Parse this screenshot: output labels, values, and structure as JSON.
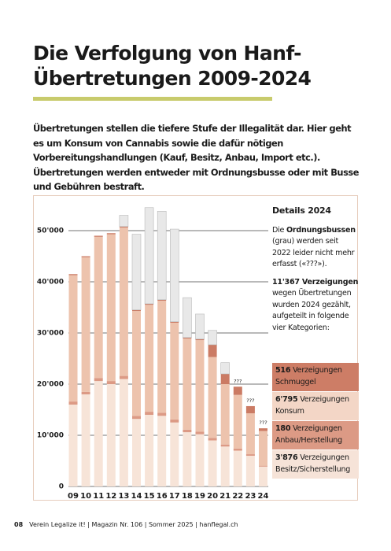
{
  "header": {
    "title_line1": "Die Verfolgung von Hanf-",
    "title_line2": "Übertretungen 2009-2024"
  },
  "intro": "Übertretungen stellen die tiefere Stufe der Illegalität dar. Hier geht es um Konsum von Cannabis sowie die dafür nötigen Vorbereitungshandlungen (Kauf, Besitz, Anbau, Import etc.). Übertretungen werden entweder mit Ordnungsbusse oder mit Busse und Gebühren bestraft.",
  "chart_data": {
    "type": "stacked_bar",
    "categories": [
      "09",
      "10",
      "11",
      "12",
      "13",
      "14",
      "15",
      "16",
      "17",
      "18",
      "19",
      "20",
      "21",
      "22",
      "23",
      "24"
    ],
    "ylim": [
      0,
      55000
    ],
    "yticks": [
      0,
      {
        "value": 10000,
        "label": "10'000"
      },
      {
        "value": 20000,
        "label": "20'000"
      },
      {
        "value": 30000,
        "label": "30'000"
      },
      {
        "value": 40000,
        "label": "40'000"
      },
      {
        "value": 50000,
        "label": "50'000"
      }
    ],
    "grid": true,
    "series": [
      {
        "name": "Verzeigungen Besitz/Sicherstellung",
        "color": "#f7e4d8",
        "values": [
          16000,
          18000,
          20600,
          20000,
          21000,
          13200,
          14000,
          13800,
          12500,
          10600,
          10200,
          9000,
          7800,
          7000,
          6000,
          3876
        ],
        "value_labels": [
          null,
          null,
          null,
          null,
          null,
          null,
          null,
          null,
          null,
          null,
          null,
          null,
          null,
          null,
          null,
          "3'876"
        ]
      },
      {
        "name": "Verzeigungen Anbau/Herstellung",
        "color": "#dc9a85",
        "values": [
          600,
          500,
          600,
          600,
          600,
          600,
          600,
          600,
          600,
          500,
          500,
          500,
          400,
          400,
          300,
          180
        ],
        "value_labels": [
          null,
          null,
          null,
          null,
          null,
          null,
          null,
          null,
          null,
          null,
          null,
          null,
          null,
          null,
          null,
          "180"
        ]
      },
      {
        "name": "Verzeigungen Konsum",
        "color": "#edc3ad",
        "values": [
          24700,
          26300,
          27600,
          28700,
          29000,
          20500,
          20900,
          21900,
          18900,
          17800,
          17900,
          15800,
          11800,
          10500,
          8000,
          6795
        ],
        "value_labels": [
          null,
          null,
          null,
          null,
          null,
          null,
          null,
          null,
          null,
          null,
          null,
          null,
          null,
          null,
          null,
          "6'795"
        ]
      },
      {
        "name": "Verzeigungen Schmuggel",
        "color": "#cb7b64",
        "values": [
          200,
          200,
          200,
          200,
          200,
          200,
          200,
          200,
          200,
          200,
          200,
          2400,
          2000,
          1600,
          1400,
          516
        ],
        "value_labels": [
          null,
          null,
          null,
          null,
          null,
          null,
          null,
          null,
          null,
          null,
          null,
          null,
          null,
          null,
          null,
          "516"
        ]
      },
      {
        "name": "Ordnungsbussen",
        "color": "#e8e8e8",
        "values": [
          null,
          null,
          null,
          null,
          2200,
          14800,
          18800,
          17300,
          18100,
          7800,
          4900,
          2800,
          2200,
          null,
          null,
          null
        ]
      }
    ],
    "annotations": [
      {
        "category": "22",
        "text": "???"
      },
      {
        "category": "23",
        "text": "???"
      },
      {
        "category": "24",
        "text": "???"
      }
    ]
  },
  "sidebar": {
    "title": "Details 2024",
    "note_before": "Die",
    "note_after": "(grau) werden seit 2022 leider nicht mehr erfasst («???»).",
    "total_label": "11'367 Verzeigungen",
    "total_text": "wegen Übertretungen wurden 2024 gezählt, aufgeteilt in folgende vier Kategorien:"
  },
  "footer": {
    "page_number": "08",
    "text": "Verein Legalize it! | Magazin Nr. 106 | Sommer 2025 | hanflegal.ch"
  }
}
